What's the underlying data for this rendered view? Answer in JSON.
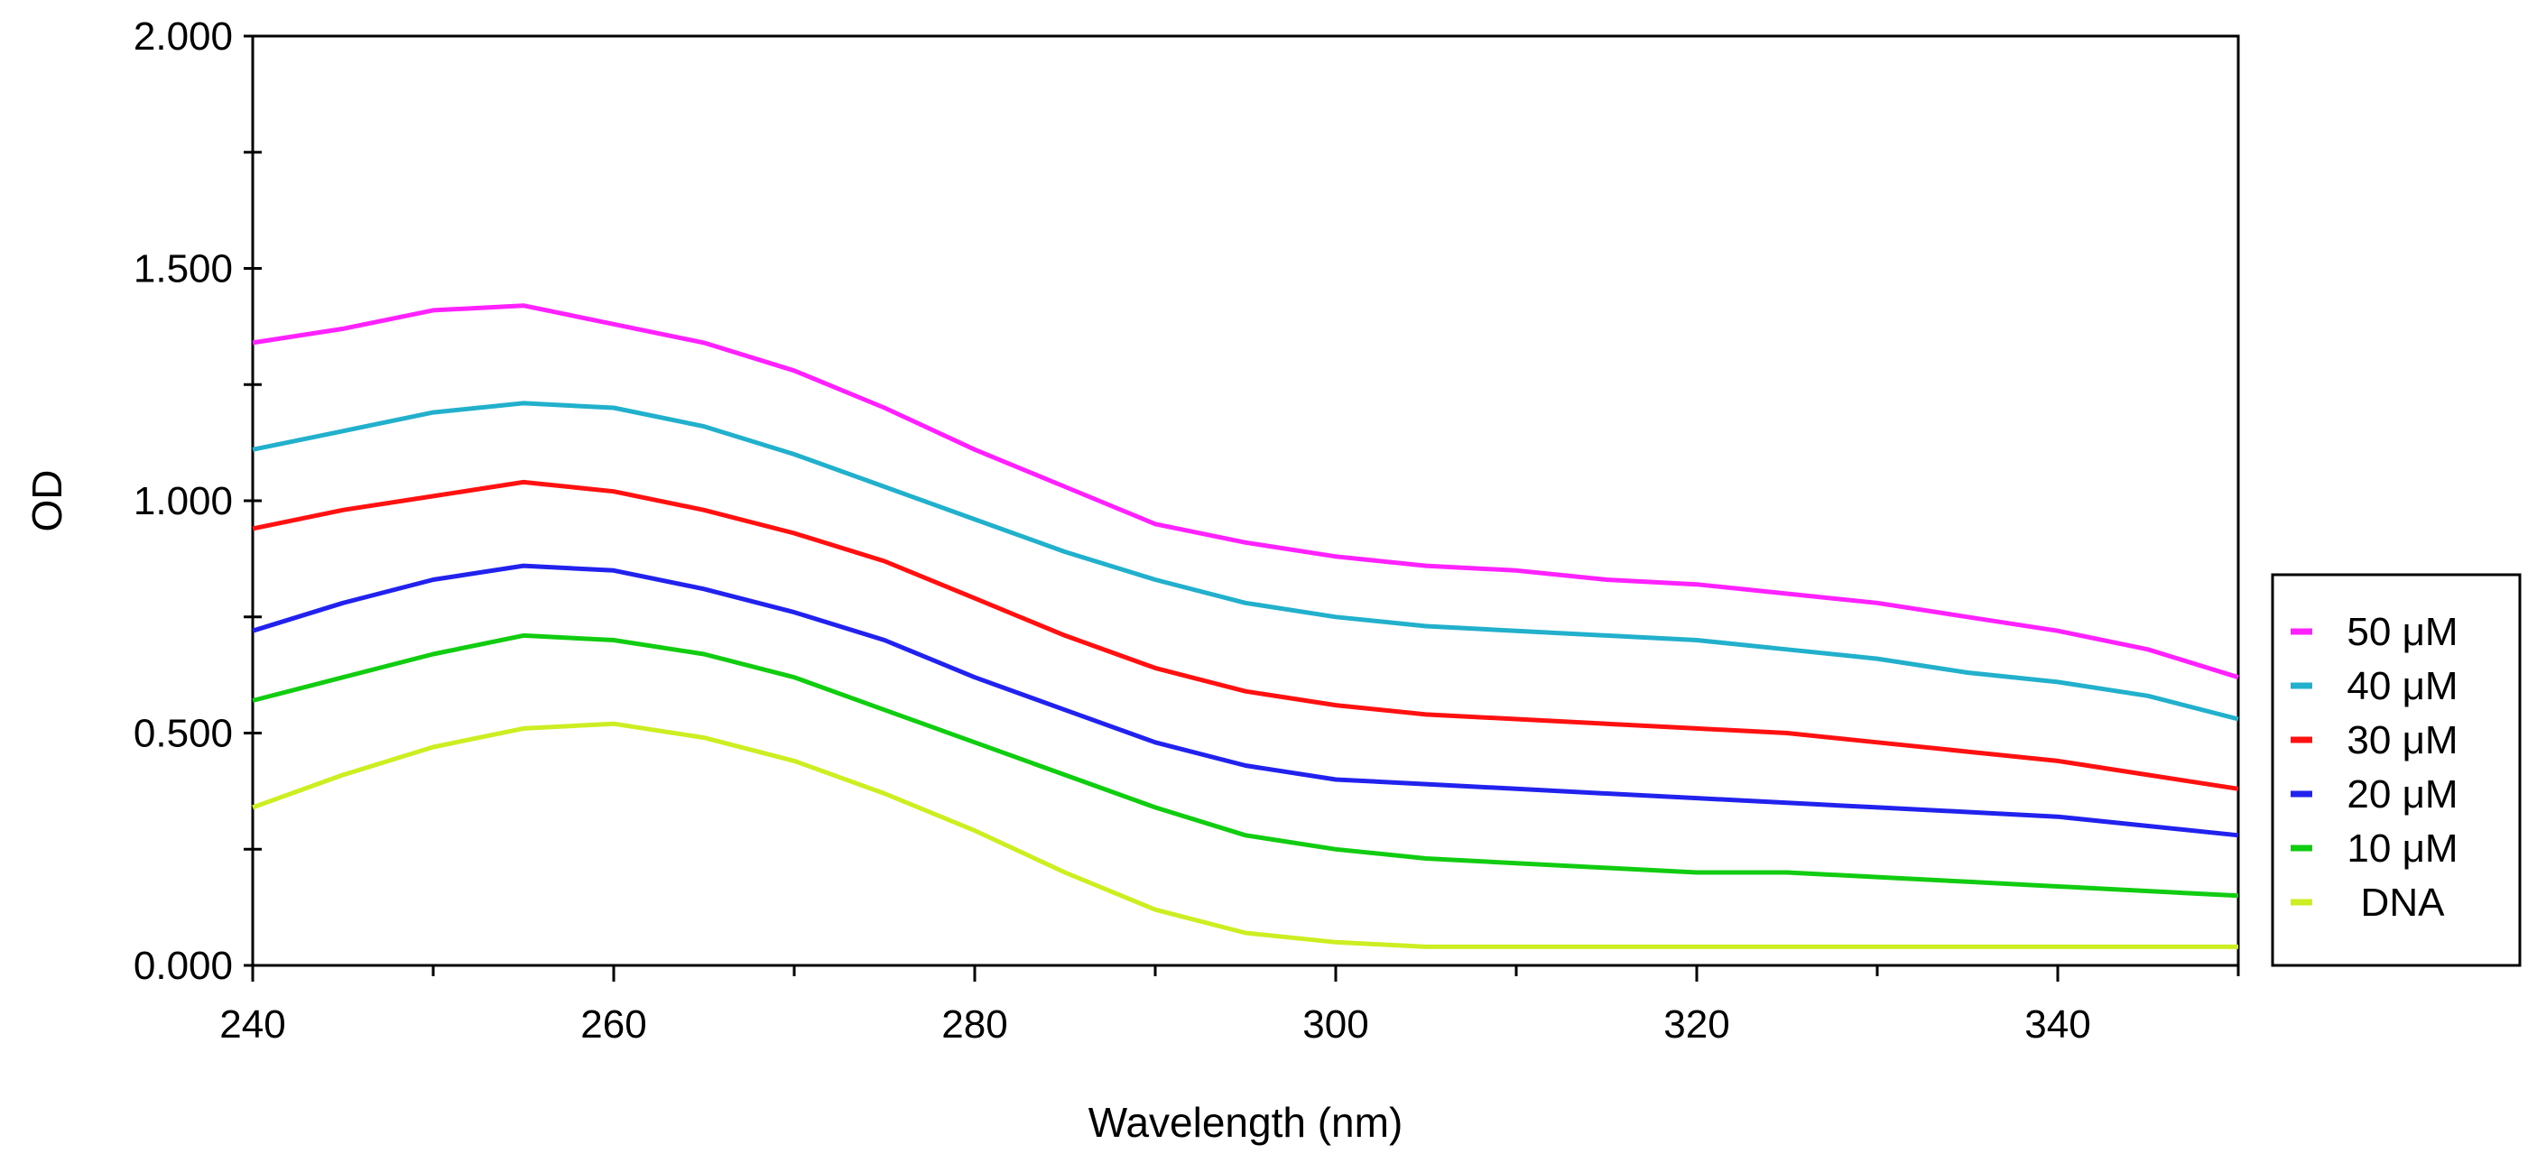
{
  "chart_data": {
    "type": "line",
    "title": "",
    "xlabel": "Wavelength (nm)",
    "ylabel": "OD",
    "xlim": [
      240,
      350
    ],
    "ylim": [
      0,
      2
    ],
    "x_ticks": [
      240,
      260,
      280,
      300,
      320,
      340
    ],
    "x_tick_labels": [
      "240",
      "260",
      "280",
      "300",
      "320",
      "340"
    ],
    "y_ticks": [
      0,
      0.5,
      1,
      1.5,
      2
    ],
    "y_tick_labels": [
      "0.000",
      "0.500",
      "1.000",
      "1.500",
      "2.000"
    ],
    "grid": false,
    "legend_position": "right",
    "x": [
      240,
      245,
      250,
      255,
      260,
      265,
      270,
      275,
      280,
      285,
      290,
      295,
      300,
      305,
      310,
      315,
      320,
      325,
      330,
      335,
      340,
      345,
      350
    ],
    "series": [
      {
        "name": "50 μM",
        "color": "#ff22ff",
        "values": [
          1.34,
          1.37,
          1.41,
          1.42,
          1.38,
          1.34,
          1.28,
          1.2,
          1.11,
          1.03,
          0.95,
          0.91,
          0.88,
          0.86,
          0.85,
          0.83,
          0.82,
          0.8,
          0.78,
          0.75,
          0.72,
          0.68,
          0.62
        ]
      },
      {
        "name": "40 μM",
        "color": "#22b0cc",
        "values": [
          1.11,
          1.15,
          1.19,
          1.21,
          1.2,
          1.16,
          1.1,
          1.03,
          0.96,
          0.89,
          0.83,
          0.78,
          0.75,
          0.73,
          0.72,
          0.71,
          0.7,
          0.68,
          0.66,
          0.63,
          0.61,
          0.58,
          0.53
        ]
      },
      {
        "name": "30 μM",
        "color": "#ff1111",
        "values": [
          0.94,
          0.98,
          1.01,
          1.04,
          1.02,
          0.98,
          0.93,
          0.87,
          0.79,
          0.71,
          0.64,
          0.59,
          0.56,
          0.54,
          0.53,
          0.52,
          0.51,
          0.5,
          0.48,
          0.46,
          0.44,
          0.41,
          0.38
        ]
      },
      {
        "name": "20 μM",
        "color": "#2222ee",
        "values": [
          0.72,
          0.78,
          0.83,
          0.86,
          0.85,
          0.81,
          0.76,
          0.7,
          0.62,
          0.55,
          0.48,
          0.43,
          0.4,
          0.39,
          0.38,
          0.37,
          0.36,
          0.35,
          0.34,
          0.33,
          0.32,
          0.3,
          0.28
        ]
      },
      {
        "name": "10 μM",
        "color": "#11cc11",
        "values": [
          0.57,
          0.62,
          0.67,
          0.71,
          0.7,
          0.67,
          0.62,
          0.55,
          0.48,
          0.41,
          0.34,
          0.28,
          0.25,
          0.23,
          0.22,
          0.21,
          0.2,
          0.2,
          0.19,
          0.18,
          0.17,
          0.16,
          0.15
        ]
      },
      {
        "name": "DNA",
        "color": "#ccee22",
        "values": [
          0.34,
          0.41,
          0.47,
          0.51,
          0.52,
          0.49,
          0.44,
          0.37,
          0.29,
          0.2,
          0.12,
          0.07,
          0.05,
          0.04,
          0.04,
          0.04,
          0.04,
          0.04,
          0.04,
          0.04,
          0.04,
          0.04,
          0.04
        ]
      }
    ]
  }
}
